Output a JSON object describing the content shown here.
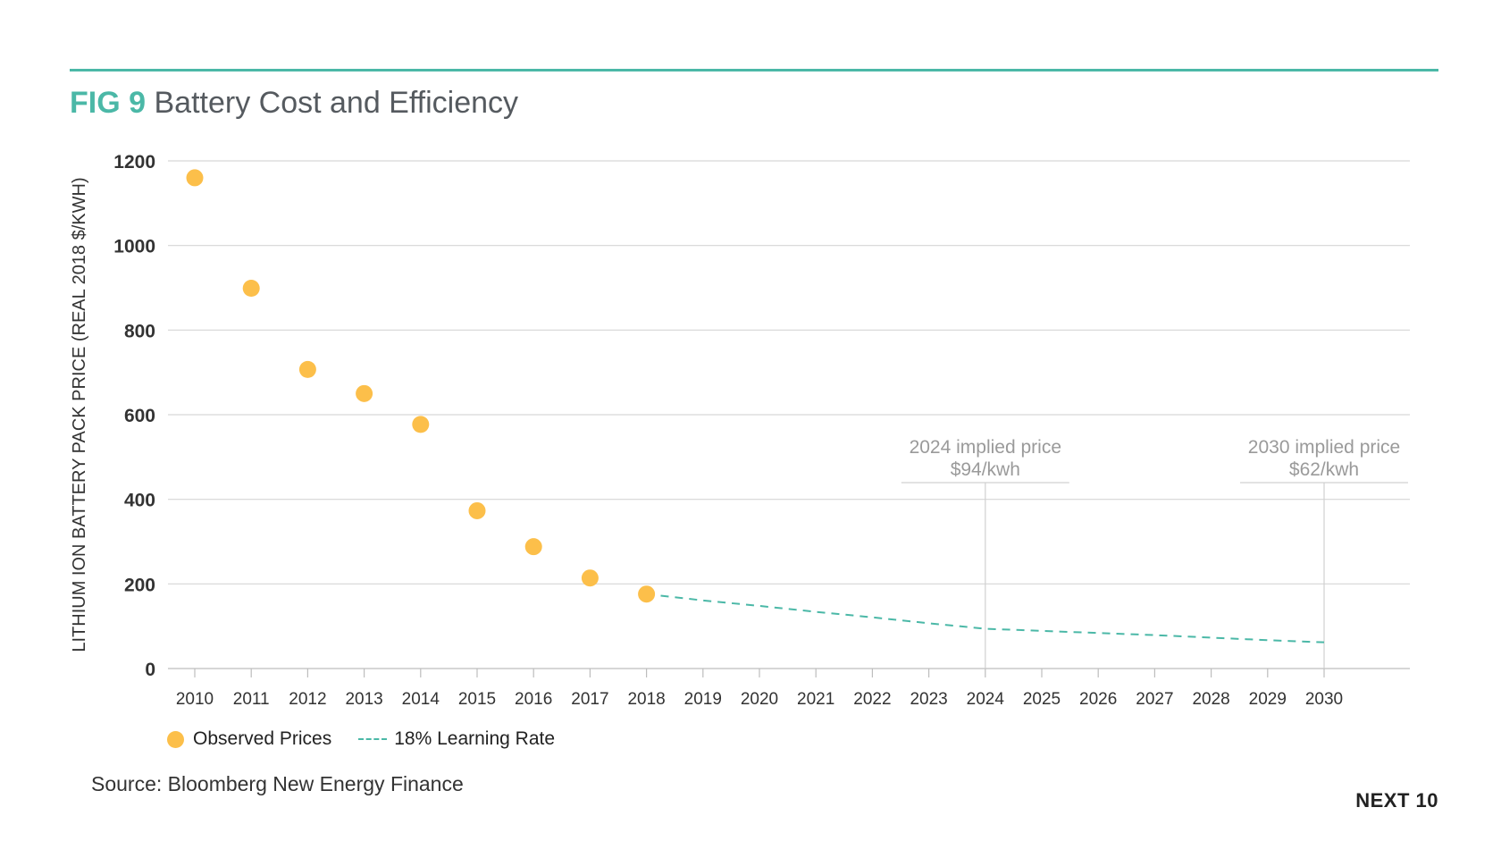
{
  "figure": {
    "label": "FIG 9",
    "title": "Battery Cost and Efficiency"
  },
  "legend": {
    "observed": "Observed Prices",
    "learning": "18% Learning Rate"
  },
  "source": "Source: Bloomberg New Energy Finance",
  "brand": "NEXT 10",
  "colors": {
    "accent": "#4bb8a7",
    "points": "#fcbf4a",
    "grid": "#d6d6d6",
    "axis_text": "#333333"
  },
  "chart_data": {
    "type": "scatter",
    "ylabel": "LITHIUM ION BATTERY PACK PRICE (REAL 2018 $/KWH)",
    "xlabel": "",
    "x_categories": [
      "2010",
      "2011",
      "2012",
      "2013",
      "2014",
      "2015",
      "2016",
      "2017",
      "2018",
      "2019",
      "2020",
      "2021",
      "2022",
      "2023",
      "2024",
      "2025",
      "2026",
      "2027",
      "2028",
      "2029",
      "2030"
    ],
    "ylim": [
      0,
      1200
    ],
    "yticks": [
      0,
      200,
      400,
      600,
      800,
      1000,
      1200
    ],
    "grid": true,
    "legend_position": "bottom-left",
    "series": [
      {
        "name": "Observed Prices",
        "type": "scatter",
        "x": [
          "2010",
          "2011",
          "2012",
          "2013",
          "2014",
          "2015",
          "2016",
          "2017",
          "2018"
        ],
        "y": [
          1160,
          899,
          707,
          650,
          577,
          373,
          288,
          214,
          176
        ]
      },
      {
        "name": "18% Learning Rate",
        "type": "line",
        "style": "dashed",
        "x": [
          "2018",
          "2019",
          "2020",
          "2021",
          "2022",
          "2023",
          "2024",
          "2025",
          "2026",
          "2027",
          "2028",
          "2029",
          "2030"
        ],
        "y": [
          176,
          161,
          148,
          134,
          121,
          107,
          94,
          89,
          84,
          79,
          73,
          67,
          62
        ]
      }
    ],
    "annotations": [
      {
        "x": "2024",
        "lines": [
          "2024 implied price",
          "$94/kwh"
        ]
      },
      {
        "x": "2030",
        "lines": [
          "2030 implied price",
          "$62/kwh"
        ]
      }
    ]
  }
}
